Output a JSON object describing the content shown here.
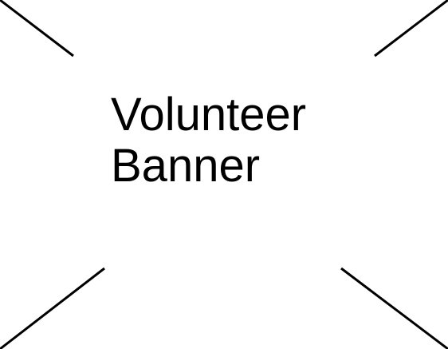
{
  "image_placeholder": {
    "line1": "Volunteer",
    "line2": "Banner",
    "icon": "broken-image-cross-icon",
    "colors": {
      "background": "#ffffff",
      "stroke": "#000000",
      "text": "#000000"
    }
  }
}
